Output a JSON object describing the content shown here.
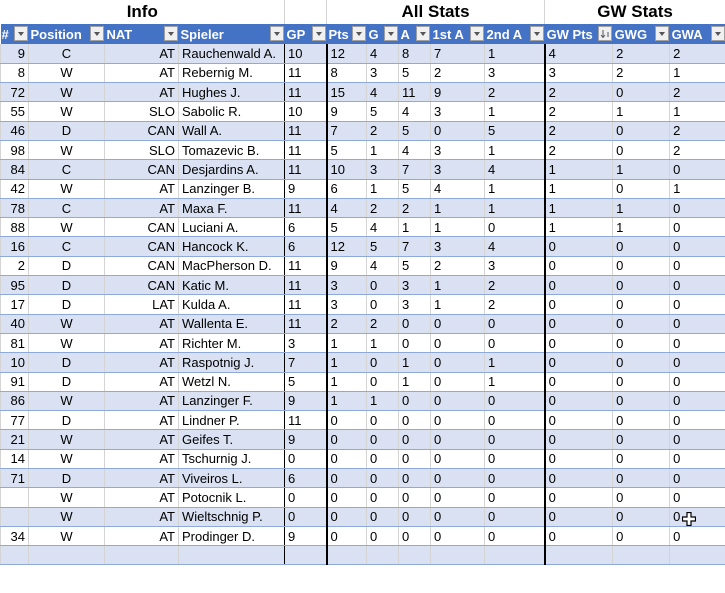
{
  "groups": {
    "info": "Info",
    "all_stats": "All Stats",
    "gw_stats": "GW Stats"
  },
  "columns": [
    "#",
    "Position",
    "NAT",
    "Spieler",
    "GP",
    "Pts",
    "G",
    "A",
    "1st A",
    "2nd A",
    "GW Pts",
    "GWG",
    "GWA"
  ],
  "sorted_column": "GW Pts",
  "colors": {
    "header": "#4472C4",
    "band": "#D9E1F2",
    "row_border": "#8EA9DB"
  },
  "rows": [
    [
      "9",
      "C",
      "AT",
      "Rauchenwald A.",
      "10",
      "12",
      "4",
      "8",
      "7",
      "1",
      "4",
      "2",
      "2"
    ],
    [
      "8",
      "W",
      "AT",
      "Rebernig M.",
      "11",
      "8",
      "3",
      "5",
      "2",
      "3",
      "3",
      "2",
      "1"
    ],
    [
      "72",
      "W",
      "AT",
      "Hughes J.",
      "11",
      "15",
      "4",
      "11",
      "9",
      "2",
      "2",
      "0",
      "2"
    ],
    [
      "55",
      "W",
      "SLO",
      "Sabolic R.",
      "10",
      "9",
      "5",
      "4",
      "3",
      "1",
      "2",
      "1",
      "1"
    ],
    [
      "46",
      "D",
      "CAN",
      "Wall A.",
      "11",
      "7",
      "2",
      "5",
      "0",
      "5",
      "2",
      "0",
      "2"
    ],
    [
      "98",
      "W",
      "SLO",
      "Tomazevic B.",
      "11",
      "5",
      "1",
      "4",
      "3",
      "1",
      "2",
      "0",
      "2"
    ],
    [
      "84",
      "C",
      "CAN",
      "Desjardins A.",
      "11",
      "10",
      "3",
      "7",
      "3",
      "4",
      "1",
      "1",
      "0"
    ],
    [
      "42",
      "W",
      "AT",
      "Lanzinger B.",
      "9",
      "6",
      "1",
      "5",
      "4",
      "1",
      "1",
      "0",
      "1"
    ],
    [
      "78",
      "C",
      "AT",
      "Maxa F.",
      "11",
      "4",
      "2",
      "2",
      "1",
      "1",
      "1",
      "1",
      "0"
    ],
    [
      "88",
      "W",
      "CAN",
      "Luciani A.",
      "6",
      "5",
      "4",
      "1",
      "1",
      "0",
      "1",
      "1",
      "0"
    ],
    [
      "16",
      "C",
      "CAN",
      "Hancock K.",
      "6",
      "12",
      "5",
      "7",
      "3",
      "4",
      "0",
      "0",
      "0"
    ],
    [
      "2",
      "D",
      "CAN",
      "MacPherson D.",
      "11",
      "9",
      "4",
      "5",
      "2",
      "3",
      "0",
      "0",
      "0"
    ],
    [
      "95",
      "D",
      "CAN",
      "Katic M.",
      "11",
      "3",
      "0",
      "3",
      "1",
      "2",
      "0",
      "0",
      "0"
    ],
    [
      "17",
      "D",
      "LAT",
      "Kulda A.",
      "11",
      "3",
      "0",
      "3",
      "1",
      "2",
      "0",
      "0",
      "0"
    ],
    [
      "40",
      "W",
      "AT",
      "Wallenta E.",
      "11",
      "2",
      "2",
      "0",
      "0",
      "0",
      "0",
      "0",
      "0"
    ],
    [
      "81",
      "W",
      "AT",
      "Richter M.",
      "3",
      "1",
      "1",
      "0",
      "0",
      "0",
      "0",
      "0",
      "0"
    ],
    [
      "10",
      "D",
      "AT",
      "Raspotnig J.",
      "7",
      "1",
      "0",
      "1",
      "0",
      "1",
      "0",
      "0",
      "0"
    ],
    [
      "91",
      "D",
      "AT",
      "Wetzl N.",
      "5",
      "1",
      "0",
      "1",
      "0",
      "1",
      "0",
      "0",
      "0"
    ],
    [
      "86",
      "W",
      "AT",
      "Lanzinger F.",
      "9",
      "1",
      "1",
      "0",
      "0",
      "0",
      "0",
      "0",
      "0"
    ],
    [
      "77",
      "D",
      "AT",
      "Lindner P.",
      "11",
      "0",
      "0",
      "0",
      "0",
      "0",
      "0",
      "0",
      "0"
    ],
    [
      "21",
      "W",
      "AT",
      "Geifes T.",
      "9",
      "0",
      "0",
      "0",
      "0",
      "0",
      "0",
      "0",
      "0"
    ],
    [
      "14",
      "W",
      "AT",
      "Tschurnig J.",
      "0",
      "0",
      "0",
      "0",
      "0",
      "0",
      "0",
      "0",
      "0"
    ],
    [
      "71",
      "D",
      "AT",
      "Viveiros L.",
      "6",
      "0",
      "0",
      "0",
      "0",
      "0",
      "0",
      "0",
      "0"
    ],
    [
      "",
      "W",
      "AT",
      "Potocnik L.",
      "0",
      "0",
      "0",
      "0",
      "0",
      "0",
      "0",
      "0",
      "0"
    ],
    [
      "",
      "W",
      "AT",
      "Wieltschnig P.",
      "0",
      "0",
      "0",
      "0",
      "0",
      "0",
      "0",
      "0",
      "0"
    ],
    [
      "34",
      "W",
      "AT",
      "Prodinger D.",
      "9",
      "0",
      "0",
      "0",
      "0",
      "0",
      "0",
      "0",
      "0"
    ]
  ]
}
